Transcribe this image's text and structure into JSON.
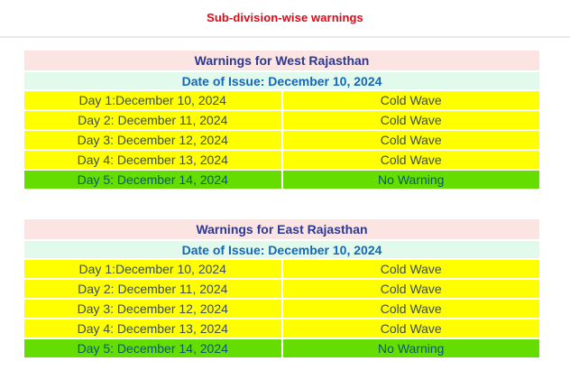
{
  "page": {
    "title": "Sub-division-wise warnings"
  },
  "colors": {
    "title_red": "#e30613",
    "header_pink_bg": "#fce4e2",
    "header_navy_text": "#2b3990",
    "date_mint_bg": "#e1faec",
    "date_blue_text": "#1667b8",
    "warning_yellow_bg": "#ffff00",
    "warning_text": "#3e4f4b",
    "no_warning_green_bg": "#66dd00",
    "no_warning_text": "#045a6e",
    "divider_gray": "#e9e9e9"
  },
  "tables": [
    {
      "title": "Warnings for West Rajasthan",
      "date_of_issue": "Date of Issue: December 10, 2024",
      "rows": [
        {
          "day": "Day 1:December 10, 2024",
          "warning": "Cold Wave"
        },
        {
          "day": "Day 2: December 11, 2024",
          "warning": "Cold Wave"
        },
        {
          "day": "Day 3: December 12, 2024",
          "warning": "Cold Wave"
        },
        {
          "day": "Day 4: December 13, 2024",
          "warning": "Cold Wave"
        },
        {
          "day": "Day 5: December 14, 2024",
          "warning": "No Warning"
        }
      ]
    },
    {
      "title": "Warnings for East Rajasthan",
      "date_of_issue": "Date of Issue: December 10, 2024",
      "rows": [
        {
          "day": "Day 1:December 10, 2024",
          "warning": "Cold Wave"
        },
        {
          "day": "Day 2: December 11, 2024",
          "warning": "Cold Wave"
        },
        {
          "day": "Day 3: December 12, 2024",
          "warning": "Cold Wave"
        },
        {
          "day": "Day 4: December 13, 2024",
          "warning": "Cold Wave"
        },
        {
          "day": "Day 5: December 14, 2024",
          "warning": "No Warning"
        }
      ]
    }
  ]
}
